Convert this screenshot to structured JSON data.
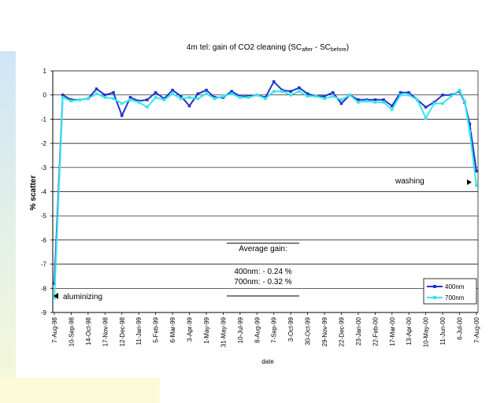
{
  "chart_data": {
    "type": "line",
    "title": {
      "main": "4m tel: gain of CO2 cleaning (SC",
      "after_sub": "after",
      "mid": " - SC",
      "before_sub": "before",
      "end": ")"
    },
    "xlabel": "date",
    "ylabel": "% scatter",
    "ylim": [
      -9,
      1
    ],
    "yticks": [
      "1",
      "0",
      "-1",
      "-2",
      "-3",
      "-4",
      "-5",
      "-6",
      "-7",
      "-8",
      "-9"
    ],
    "grid": true,
    "xticks": [
      "7-Aug-98",
      "10-Sep-98",
      "14-Oct-98",
      "17-Nov-98",
      "12-Dec-98",
      "11-Jan-99",
      "5-Feb-99",
      "6-Mar-99",
      "3-Apr-99",
      "1-May-99",
      "31-May-99",
      "10-Jul-99",
      "8-Aug-99",
      "7-Sep-99",
      "3-Oct-99",
      "30-Oct-99",
      "29-Nov-99",
      "22-Dec-99",
      "23-Jan-00",
      "22-Feb-00",
      "17-Mar-00",
      "13-Apr-00",
      "10-May-00",
      "11-Jun-00",
      "6-Jul-00",
      "7-Aug-00"
    ],
    "x_index": [
      0,
      0.5,
      1,
      1.5,
      2,
      2.5,
      3,
      3.5,
      4,
      4.5,
      5,
      5.5,
      6,
      6.5,
      7,
      7.5,
      8,
      8.5,
      9,
      9.5,
      10,
      10.5,
      11,
      11.5,
      12,
      12.5,
      13,
      13.5,
      14,
      14.5,
      15,
      15.5,
      16,
      16.5,
      17,
      17.5,
      18,
      18.5,
      19,
      19.5,
      20,
      20.5,
      21,
      21.5,
      22,
      22.5,
      23,
      23.5,
      24,
      24.3,
      24.6,
      25
    ],
    "series": [
      {
        "name": "400nm",
        "color": "#2233cc",
        "values": [
          -7.8,
          0.0,
          -0.2,
          -0.2,
          -0.15,
          0.25,
          0.0,
          0.1,
          -0.85,
          -0.1,
          -0.25,
          -0.2,
          0.1,
          -0.15,
          0.2,
          -0.05,
          -0.45,
          0.05,
          0.2,
          -0.1,
          -0.1,
          0.15,
          -0.05,
          -0.05,
          0.0,
          -0.1,
          0.55,
          0.2,
          0.15,
          0.3,
          0.05,
          -0.05,
          -0.05,
          0.1,
          -0.35,
          0.0,
          -0.2,
          -0.2,
          -0.2,
          -0.2,
          -0.45,
          0.1,
          0.1,
          -0.2,
          -0.5,
          -0.3,
          0.0,
          0.0,
          0.15,
          -0.3,
          -1.2,
          -3.15
        ]
      },
      {
        "name": "700nm",
        "color": "#33e6ee",
        "values": [
          -8.4,
          -0.1,
          -0.25,
          -0.2,
          -0.15,
          0.05,
          -0.1,
          -0.15,
          -0.35,
          -0.2,
          -0.3,
          -0.5,
          -0.1,
          -0.2,
          0.05,
          -0.15,
          -0.1,
          -0.15,
          0.05,
          -0.15,
          -0.05,
          0.05,
          -0.1,
          -0.1,
          0.0,
          -0.15,
          0.15,
          0.15,
          0.0,
          0.15,
          -0.05,
          -0.05,
          -0.15,
          -0.05,
          -0.2,
          0.0,
          -0.3,
          -0.25,
          -0.3,
          -0.3,
          -0.6,
          0.0,
          0.0,
          -0.2,
          -0.95,
          -0.35,
          -0.35,
          -0.05,
          0.2,
          -0.25,
          -1.5,
          -3.75
        ]
      }
    ],
    "legend": {
      "placement": "bottom-right"
    },
    "annotations": {
      "washing": "washing",
      "aluminizing": "aluminizing"
    },
    "average_box": {
      "heading": "Average gain:",
      "line1": "400nm: - 0.24 %",
      "line2": "700nm: - 0.32 %"
    }
  }
}
